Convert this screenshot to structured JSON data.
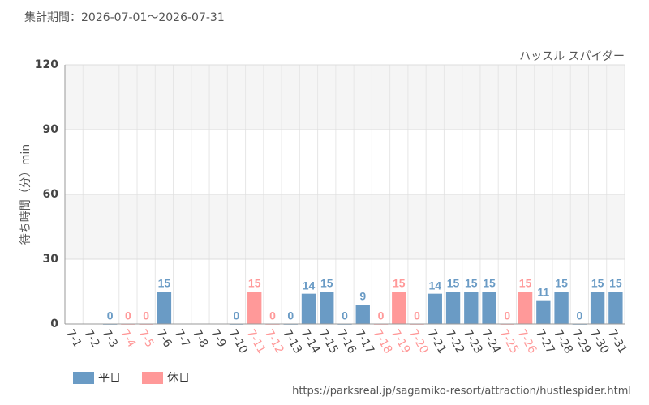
{
  "chart_data": {
    "type": "bar",
    "period": "集計期間：2026-07-01～2026-07-31",
    "title": "ハッスル スパイダー",
    "y_label": "待ち時間（分）min",
    "source": "https://parksreal.jp/sagamiko-resort/attraction/hustlespider.html",
    "categories": [
      "7-1",
      "7-2",
      "7-3",
      "7-4",
      "7-5",
      "7-6",
      "7-7",
      "7-8",
      "7-9",
      "7-10",
      "7-11",
      "7-12",
      "7-13",
      "7-14",
      "7-15",
      "7-16",
      "7-17",
      "7-18",
      "7-19",
      "7-20",
      "7-21",
      "7-22",
      "7-23",
      "7-24",
      "7-25",
      "7-26",
      "7-27",
      "7-28",
      "7-29",
      "7-30",
      "7-31"
    ],
    "series": [
      {
        "name": "平日",
        "color": "#6a9bc5",
        "values": [
          null,
          null,
          0,
          null,
          null,
          15,
          null,
          null,
          null,
          0,
          null,
          null,
          0,
          14,
          15,
          0,
          9,
          null,
          null,
          null,
          14,
          15,
          15,
          15,
          null,
          null,
          11,
          15,
          0,
          15,
          15
        ]
      },
      {
        "name": "休日",
        "color": "#ff9999",
        "values": [
          null,
          null,
          null,
          0,
          0,
          null,
          null,
          null,
          null,
          null,
          15,
          0,
          null,
          null,
          null,
          null,
          null,
          0,
          15,
          0,
          null,
          null,
          null,
          null,
          0,
          15,
          null,
          null,
          null,
          null,
          null
        ]
      }
    ],
    "ylim": [
      0,
      120
    ],
    "yticks": [
      0,
      30,
      60,
      90,
      120
    ],
    "grid": true
  }
}
